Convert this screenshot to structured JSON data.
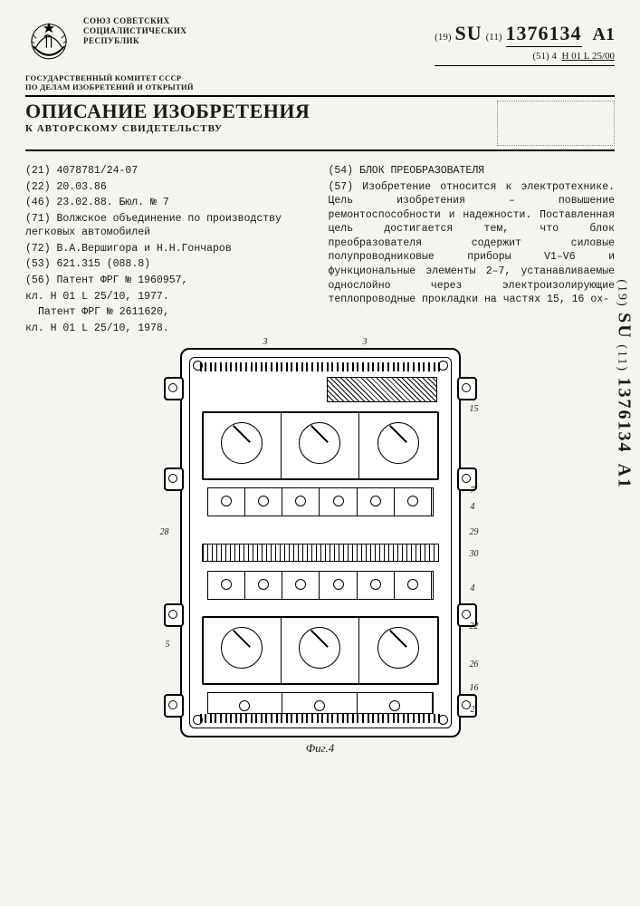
{
  "header": {
    "org_line1": "СОЮЗ СОВЕТСКИХ",
    "org_line2": "СОЦИАЛИСТИЧЕСКИХ",
    "org_line3": "РЕСПУБЛИК",
    "prefix_19": "(19)",
    "country": "SU",
    "prefix_11": "(11)",
    "number": "1376134",
    "kind": "A1",
    "cls_prefix": "(51) 4",
    "cls_code": "H 01 L 25/00"
  },
  "committee": {
    "line1": "ГОСУДАРСТВЕННЫЙ КОМИТЕТ СССР",
    "line2": "ПО ДЕЛАМ ИЗОБРЕТЕНИЙ И ОТКРЫТИЙ"
  },
  "title": {
    "main": "ОПИСАНИЕ ИЗОБРЕТЕНИЯ",
    "sub": "К АВТОРСКОМУ СВИДЕТЕЛЬСТВУ"
  },
  "biblio": {
    "f21": "(21) 4078781/24-07",
    "f22": "(22) 20.03.86",
    "f46": "(46) 23.02.88. Бюл. № 7",
    "f71": "(71) Волжское объединение по производству легковых автомобилей",
    "f72": "(72) В.А.Вершигора и Н.Н.Гончаров",
    "f53": "(53) 621.315 (088.8)",
    "f56a": "(56) Патент ФРГ № 1960957,",
    "f56b": "кл. H 01 L 25/10, 1977.",
    "f56c": "Патент ФРГ № 2611620,",
    "f56d": "кл. H 01 L 25/10, 1978."
  },
  "abstract": {
    "f54": "(54) БЛОК ПРЕОБРАЗОВАТЕЛЯ",
    "f57": "(57) Изобретение относится к электротехнике. Цель изобретения – повышение ремонтоспособности и надежности. Поставленная цель достигается тем, что блок преобразователя содержит силовые полупроводниковые приборы V1–V6 и функциональные элементы 2–7, устанавливаемые однослойно через электроизолирующие теплопроводные прокладки на частях 15, 16 ох-"
  },
  "figure": {
    "label": "Фиг.4",
    "callouts": {
      "c3a": "3",
      "c3b": "3",
      "c15": "15",
      "c7": "7",
      "c4a": "4",
      "c28": "28",
      "c29": "29",
      "c30": "30",
      "c5": "5",
      "c4b": "4",
      "c22": "22",
      "c26": "26",
      "c16": "16",
      "c2": "2"
    }
  },
  "side": {
    "prefix_19": "(19)",
    "country": "SU",
    "prefix_11": "(11)",
    "number": "1376134",
    "kind": "A1"
  },
  "style": {
    "page_bg": "#f5f5f0",
    "ink": "#1a1a1a",
    "line_weight_main": 2.5,
    "line_weight_inner": 1.5
  }
}
